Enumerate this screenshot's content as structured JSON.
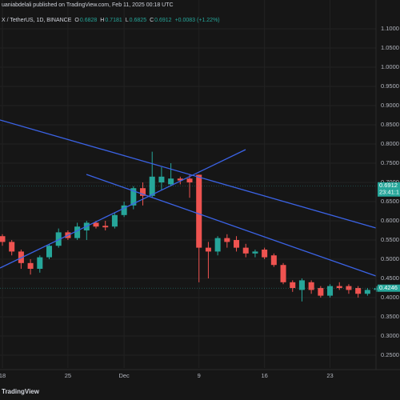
{
  "header": {
    "published": "uaniabdelali published on TradingView.com, Feb 11, 2025 00:18 UTC",
    "symbol": "X / TetherUS, 1D, BINANCE",
    "ohlc": [
      {
        "key": "O",
        "value": "0.6828"
      },
      {
        "key": "H",
        "value": "0.7181"
      },
      {
        "key": "L",
        "value": "0.6825"
      },
      {
        "key": "C",
        "value": "0.6912"
      }
    ],
    "change": "+0.0083 (+1.22%)"
  },
  "footer": {
    "brand": "TradingView"
  },
  "chart_data": {
    "type": "candlestick",
    "x": [
      0,
      1,
      2,
      3,
      4,
      5,
      6,
      7,
      8,
      9,
      10,
      11,
      12,
      13,
      14,
      15,
      16,
      17,
      18,
      19,
      20,
      21,
      22,
      23,
      24,
      25,
      26,
      27,
      28,
      29,
      30,
      31,
      32,
      33,
      34,
      35,
      36,
      37,
      38,
      39,
      40
    ],
    "open": [
      0.56,
      0.545,
      0.52,
      0.49,
      0.475,
      0.505,
      0.535,
      0.57,
      0.555,
      0.575,
      0.595,
      0.587,
      0.585,
      0.615,
      0.64,
      0.685,
      0.665,
      0.7,
      0.695,
      0.71,
      0.71,
      0.72,
      0.53,
      0.52,
      0.555,
      0.55,
      0.53,
      0.515,
      0.525,
      0.51,
      0.485,
      0.44,
      0.42,
      0.44,
      0.425,
      0.405,
      0.43,
      0.43,
      0.425,
      0.41,
      0.42
    ],
    "high": [
      0.565,
      0.55,
      0.525,
      0.5,
      0.51,
      0.54,
      0.58,
      0.575,
      0.595,
      0.6,
      0.6,
      0.6,
      0.62,
      0.65,
      0.69,
      0.7,
      0.78,
      0.74,
      0.75,
      0.715,
      0.72,
      0.72,
      0.545,
      0.56,
      0.565,
      0.56,
      0.54,
      0.525,
      0.53,
      0.515,
      0.49,
      0.445,
      0.45,
      0.445,
      0.43,
      0.435,
      0.44,
      0.435,
      0.43,
      0.425,
      0.43
    ],
    "low": [
      0.535,
      0.51,
      0.475,
      0.46,
      0.465,
      0.5,
      0.53,
      0.55,
      0.55,
      0.55,
      0.58,
      0.575,
      0.58,
      0.61,
      0.63,
      0.64,
      0.66,
      0.68,
      0.69,
      0.695,
      0.66,
      0.44,
      0.45,
      0.51,
      0.53,
      0.52,
      0.505,
      0.505,
      0.5,
      0.48,
      0.435,
      0.415,
      0.39,
      0.41,
      0.4,
      0.4,
      0.42,
      0.41,
      0.4,
      0.405,
      0.415
    ],
    "close": [
      0.545,
      0.52,
      0.49,
      0.475,
      0.505,
      0.535,
      0.57,
      0.555,
      0.585,
      0.595,
      0.585,
      0.583,
      0.615,
      0.64,
      0.685,
      0.665,
      0.715,
      0.715,
      0.71,
      0.705,
      0.7,
      0.53,
      0.52,
      0.555,
      0.545,
      0.53,
      0.515,
      0.52,
      0.505,
      0.485,
      0.44,
      0.425,
      0.445,
      0.42,
      0.405,
      0.43,
      0.425,
      0.42,
      0.41,
      0.42,
      0.4246
    ],
    "up_color": "#26a69a",
    "down_color": "#ef5350",
    "xlim": [
      -0.256,
      39.91
    ],
    "ylim": [
      0.2167,
      1.1292
    ],
    "xticks": [
      {
        "value": 0,
        "label": "18"
      },
      {
        "value": 7,
        "label": "25"
      },
      {
        "value": 13,
        "label": "Dec"
      },
      {
        "value": 21,
        "label": "9"
      },
      {
        "value": 28,
        "label": "16"
      },
      {
        "value": 35,
        "label": "23"
      }
    ],
    "yticks": [
      {
        "value": 0.25,
        "label": "0.2500"
      },
      {
        "value": 0.3,
        "label": "0.3000"
      },
      {
        "value": 0.35,
        "label": "0.3500"
      },
      {
        "value": 0.4,
        "label": "0.4000"
      },
      {
        "value": 0.45,
        "label": "0.4500"
      },
      {
        "value": 0.5,
        "label": "0.5000"
      },
      {
        "value": 0.55,
        "label": "0.5500"
      },
      {
        "value": 0.6,
        "label": "0.6000"
      },
      {
        "value": 0.65,
        "label": "0.6500"
      },
      {
        "value": 0.7,
        "label": "0.7000"
      },
      {
        "value": 0.75,
        "label": "0.7500"
      },
      {
        "value": 0.8,
        "label": "0.8000"
      },
      {
        "value": 0.85,
        "label": "0.8500"
      },
      {
        "value": 0.9,
        "label": "0.9000"
      },
      {
        "value": 0.95,
        "label": "0.9500"
      },
      {
        "value": 1.0,
        "label": "1.0000"
      },
      {
        "value": 1.05,
        "label": "1.0500"
      },
      {
        "value": 1.1,
        "label": "1.1000"
      }
    ],
    "grid": true,
    "price_labels": [
      {
        "value": 0.6912,
        "label": "0.6912",
        "sub": "23:41:1",
        "color": "#26a69a"
      },
      {
        "value": 0.4246,
        "label": "0.4246",
        "color": "#26a69a"
      }
    ]
  }
}
